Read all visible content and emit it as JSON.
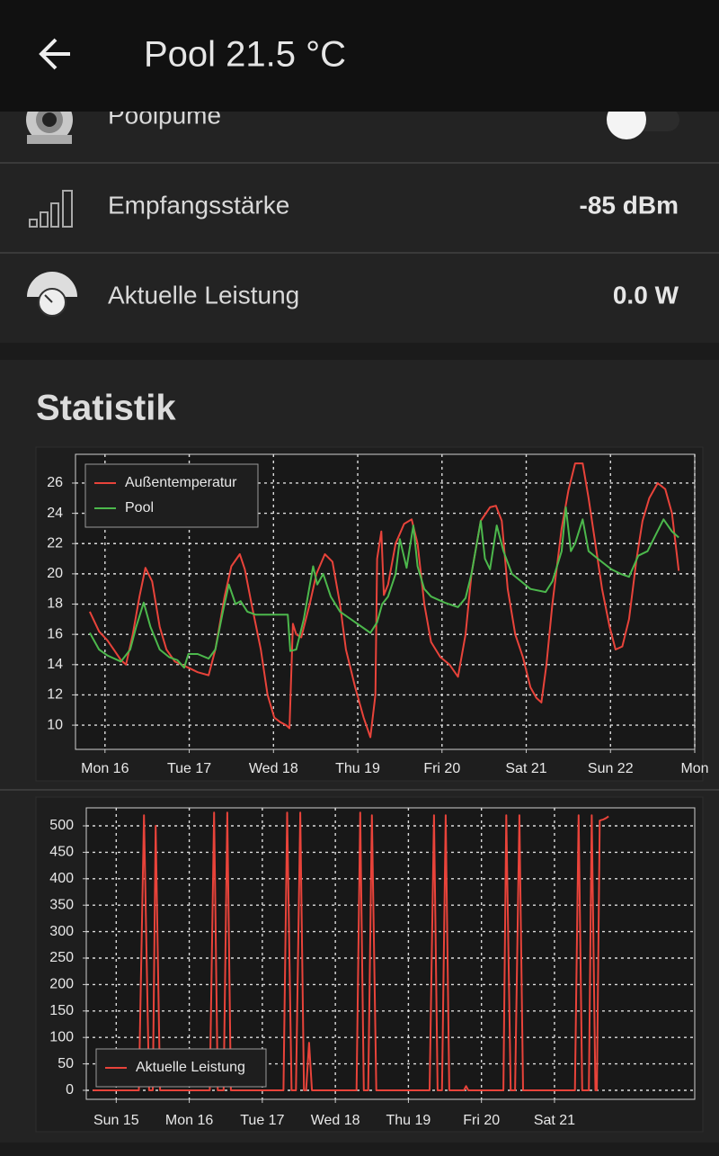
{
  "header": {
    "title": "Pool 21.5 °C"
  },
  "rows": [
    {
      "label": "Poolpume"
    },
    {
      "label": "Empfangsstärke",
      "value": "-85 dBm"
    },
    {
      "label": "Aktuelle Leistung",
      "value": "0.0 W"
    }
  ],
  "section_title": "Statistik",
  "chart_data": [
    {
      "type": "line",
      "legend": "upper left",
      "grid": true,
      "xlim": [
        -0.35,
        7.0
      ],
      "xticks": [
        {
          "value": 0,
          "label": "Mon 16"
        },
        {
          "value": 1,
          "label": "Tue 17"
        },
        {
          "value": 2,
          "label": "Wed 18"
        },
        {
          "value": 3,
          "label": "Thu 19"
        },
        {
          "value": 4,
          "label": "Fri 20"
        },
        {
          "value": 5,
          "label": "Sat 21"
        },
        {
          "value": 6,
          "label": "Sun 22"
        },
        {
          "value": 7,
          "label": "Mon"
        }
      ],
      "ylim": [
        8.4,
        27.9
      ],
      "yticks": [
        10,
        12,
        14,
        16,
        18,
        20,
        22,
        24,
        26
      ],
      "series": [
        {
          "name": "Außentemperatur",
          "color": "#e8433a",
          "x": [
            -0.18,
            -0.07,
            0.03,
            0.19,
            0.25,
            0.33,
            0.41,
            0.48,
            0.56,
            0.65,
            0.73,
            0.83,
            0.99,
            1.1,
            1.23,
            1.31,
            1.42,
            1.5,
            1.6,
            1.66,
            1.74,
            1.85,
            1.93,
            2.01,
            2.08,
            2.15,
            2.19,
            2.23,
            2.27,
            2.33,
            2.43,
            2.51,
            2.61,
            2.7,
            2.79,
            2.86,
            2.97,
            3.07,
            3.15,
            3.21,
            3.23,
            3.28,
            3.31,
            3.36,
            3.45,
            3.55,
            3.64,
            3.71,
            3.79,
            3.87,
            3.98,
            4.09,
            4.19,
            4.28,
            4.35,
            4.46,
            4.57,
            4.64,
            4.71,
            4.78,
            4.87,
            4.96,
            5.05,
            5.12,
            5.18,
            5.24,
            5.31,
            5.42,
            5.5,
            5.58,
            5.67,
            5.74,
            5.82,
            5.9,
            5.99,
            6.06,
            6.14,
            6.22,
            6.31,
            6.38,
            6.46,
            6.56,
            6.65,
            6.73,
            6.81
          ],
          "values": [
            17.5,
            16.2,
            15.6,
            14.3,
            14.0,
            16,
            18.5,
            20.4,
            19.5,
            16.5,
            15.0,
            14.2,
            13.8,
            13.5,
            13.3,
            15,
            18.5,
            20.5,
            21.3,
            20.3,
            18,
            15,
            12,
            10.5,
            10.2,
            10.0,
            9.8,
            16.7,
            16,
            15.8,
            18,
            20,
            21.3,
            20.8,
            18,
            15,
            12.5,
            10.5,
            9.2,
            12,
            21,
            22.8,
            18.6,
            19.3,
            22,
            23.3,
            23.6,
            22,
            18,
            15.5,
            14.5,
            14,
            13.2,
            16,
            20,
            23.5,
            24.4,
            24.5,
            23.5,
            19,
            16,
            14.5,
            12.5,
            11.8,
            11.5,
            14,
            18,
            23,
            25.5,
            27.3,
            27.3,
            25,
            22,
            19,
            16.5,
            15,
            15.2,
            17,
            21,
            23.5,
            25,
            26,
            25.6,
            24,
            20.2
          ]
        },
        {
          "name": "Pool",
          "color": "#4cb84c",
          "x": [
            -0.18,
            -0.07,
            0.03,
            0.19,
            0.3,
            0.37,
            0.46,
            0.54,
            0.65,
            0.76,
            0.86,
            0.94,
            0.99,
            1.1,
            1.23,
            1.31,
            1.4,
            1.47,
            1.55,
            1.61,
            1.69,
            1.79,
            1.95,
            2.17,
            2.2,
            2.27,
            2.36,
            2.47,
            2.52,
            2.59,
            2.68,
            2.79,
            2.97,
            3.15,
            3.23,
            3.29,
            3.36,
            3.45,
            3.5,
            3.58,
            3.66,
            3.71,
            3.79,
            3.87,
            4.03,
            4.19,
            4.28,
            4.35,
            4.46,
            4.51,
            4.57,
            4.65,
            4.73,
            4.83,
            5.05,
            5.23,
            5.31,
            5.42,
            5.47,
            5.53,
            5.58,
            5.67,
            5.74,
            5.85,
            6.01,
            6.12,
            6.22,
            6.33,
            6.44,
            6.53,
            6.63,
            6.73,
            6.81
          ],
          "values": [
            16.1,
            15,
            14.6,
            14.2,
            15,
            16.5,
            18.1,
            16.5,
            15,
            14.5,
            14.3,
            13.8,
            14.7,
            14.7,
            14.4,
            15,
            17.5,
            19.3,
            18,
            18.2,
            17.5,
            17.3,
            17.3,
            17.3,
            14.9,
            15.0,
            17,
            20.5,
            19.3,
            20,
            18.5,
            17.5,
            16.8,
            16.1,
            16.8,
            18,
            18.5,
            20,
            22.3,
            20.4,
            23.2,
            20.5,
            19,
            18.5,
            18.1,
            17.8,
            18.4,
            20,
            23.5,
            21,
            20.3,
            23.2,
            21.5,
            20,
            19,
            18.8,
            19.5,
            21.5,
            24.4,
            21.5,
            22,
            23.6,
            21.5,
            21,
            20.3,
            20,
            19.8,
            21.2,
            21.5,
            22.5,
            23.6,
            22.8,
            22.4
          ]
        }
      ]
    },
    {
      "type": "line",
      "legend": "lower left",
      "grid": true,
      "xlim": [
        -1.41,
        6.92
      ],
      "xticks": [
        {
          "value": -1,
          "label": "Sun 15"
        },
        {
          "value": 0,
          "label": "Mon 16"
        },
        {
          "value": 1,
          "label": "Tue 17"
        },
        {
          "value": 2,
          "label": "Wed 18"
        },
        {
          "value": 3,
          "label": "Thu 19"
        },
        {
          "value": 4,
          "label": "Fri 20"
        },
        {
          "value": 5,
          "label": "Sat 21"
        }
      ],
      "ylim": [
        -17,
        534
      ],
      "yticks": [
        0,
        50,
        100,
        150,
        200,
        250,
        300,
        350,
        400,
        450,
        500
      ],
      "series": [
        {
          "name": "Aktuelle Leistung",
          "color": "#e8433a",
          "x": [
            -1.32,
            -0.69,
            -0.62,
            -0.55,
            -0.5,
            -0.46,
            -0.4,
            0.28,
            0.34,
            0.39,
            0.47,
            0.52,
            0.57,
            1.29,
            1.34,
            1.4,
            1.46,
            1.52,
            1.57,
            1.6,
            1.64,
            1.68,
            2.29,
            2.34,
            2.39,
            2.45,
            2.5,
            2.56,
            3.29,
            3.35,
            3.4,
            3.46,
            3.51,
            3.56,
            3.76,
            3.79,
            3.82,
            4.3,
            4.34,
            4.4,
            4.46,
            4.52,
            4.57,
            5.28,
            5.33,
            5.38,
            5.47,
            5.51,
            5.56,
            5.58,
            5.62,
            5.67,
            5.71,
            5.74
          ],
          "values": [
            0,
            0,
            520,
            0,
            0,
            500,
            0,
            0,
            525,
            0,
            0,
            525,
            0,
            0,
            525,
            0,
            0,
            525,
            0,
            0,
            90,
            0,
            0,
            525,
            0,
            0,
            520,
            0,
            0,
            520,
            0,
            0,
            520,
            0,
            0,
            8,
            0,
            0,
            520,
            0,
            0,
            520,
            0,
            0,
            520,
            0,
            0,
            520,
            0,
            0,
            510,
            512,
            515,
            518
          ]
        }
      ]
    }
  ]
}
